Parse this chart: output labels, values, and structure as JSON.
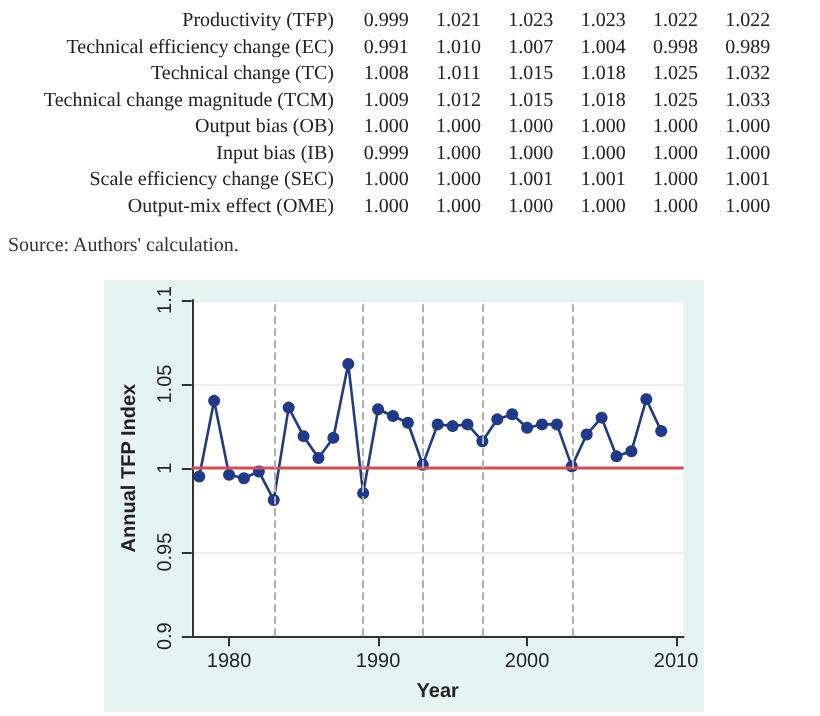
{
  "chart_data": [
    {
      "type": "heatmap",
      "categories": [
        null,
        null,
        null,
        null,
        null,
        null
      ],
      "y_categories": [
        "Productivity (TFP)",
        "Technical efficiency change (EC)",
        "Technical change (TC)",
        "Technical change magnitude (TCM)",
        "Output bias (OB)",
        "Input bias (IB)",
        "Scale efficiency change (SEC)",
        "Output-mix effect (OME)"
      ],
      "cells": [
        [
          0.999,
          1.021,
          1.023,
          1.023,
          1.022,
          1.022
        ],
        [
          0.991,
          1.01,
          1.007,
          1.004,
          0.998,
          0.989
        ],
        [
          1.008,
          1.011,
          1.015,
          1.018,
          1.025,
          1.032
        ],
        [
          1.009,
          1.012,
          1.015,
          1.018,
          1.025,
          1.033
        ],
        [
          1.0,
          1.0,
          1.0,
          1.0,
          1.0,
          1.0
        ],
        [
          0.999,
          1.0,
          1.0,
          1.0,
          1.0,
          1.0
        ],
        [
          1.0,
          1.0,
          1.001,
          1.001,
          1.0,
          1.001
        ],
        [
          1.0,
          1.0,
          1.0,
          1.0,
          1.0,
          1.0
        ]
      ],
      "cell_labels": [
        [
          "0.999",
          "1.021",
          "1.023",
          "1.023",
          "1.022",
          "1.022"
        ],
        [
          "0.991",
          "1.010",
          "1.007",
          "1.004",
          "0.998",
          "0.989"
        ],
        [
          "1.008",
          "1.011",
          "1.015",
          "1.018",
          "1.025",
          "1.032"
        ],
        [
          "1.009",
          "1.012",
          "1.015",
          "1.018",
          "1.025",
          "1.033"
        ],
        [
          "1.000",
          "1.000",
          "1.000",
          "1.000",
          "1.000",
          "1.000"
        ],
        [
          "0.999",
          "1.000",
          "1.000",
          "1.000",
          "1.000",
          "1.000"
        ],
        [
          "1.000",
          "1.000",
          "1.001",
          "1.001",
          "1.000",
          "1.001"
        ],
        [
          "1.000",
          "1.000",
          "1.000",
          "1.000",
          "1.000",
          "1.000"
        ]
      ],
      "annotations": [
        "Source: Authors' calculation."
      ]
    },
    {
      "type": "line",
      "xlabel": "Year",
      "ylabel": "Annual TFP Index",
      "color": "#1f3a8a",
      "marker": "circle",
      "line_style": "solid",
      "grid": "y",
      "x": [
        1978,
        1979,
        1980,
        1981,
        1982,
        1983,
        1984,
        1985,
        1986,
        1987,
        1988,
        1989,
        1990,
        1991,
        1992,
        1993,
        1994,
        1995,
        1996,
        1997,
        1998,
        1999,
        2000,
        2001,
        2002,
        2003,
        2004,
        2005,
        2006,
        2007,
        2008,
        2009
      ],
      "values": [
        0.995,
        1.04,
        0.996,
        0.994,
        0.998,
        0.981,
        1.036,
        1.019,
        1.006,
        1.018,
        1.062,
        0.985,
        1.035,
        1.031,
        1.027,
        1.002,
        1.026,
        1.025,
        1.026,
        1.016,
        1.029,
        1.032,
        1.024,
        1.026,
        1.026,
        1.001,
        1.02,
        1.03,
        1.007,
        1.01,
        1.041,
        1.022
      ],
      "xlim": [
        1977.5,
        2010.5
      ],
      "xticks": [
        1980,
        1990,
        2000,
        2010
      ],
      "ylim": [
        0.9,
        1.1
      ],
      "yticks": [
        0.9,
        0.95,
        1,
        1.05,
        1.1
      ],
      "ref_lines": [
        {
          "axis": "y",
          "value": 1,
          "color": "#d0505a",
          "line_style": "solid"
        },
        {
          "axis": "x",
          "value": 1983,
          "color": "#b0b0b0",
          "line_style": "dashed"
        },
        {
          "axis": "x",
          "value": 1989,
          "color": "#b0b0b0",
          "line_style": "dashed"
        },
        {
          "axis": "x",
          "value": 1993,
          "color": "#b0b0b0",
          "line_style": "dashed"
        },
        {
          "axis": "x",
          "value": 1997,
          "color": "#b0b0b0",
          "line_style": "dashed"
        },
        {
          "axis": "x",
          "value": 2003,
          "color": "#b0b0b0",
          "line_style": "dashed"
        }
      ]
    }
  ]
}
